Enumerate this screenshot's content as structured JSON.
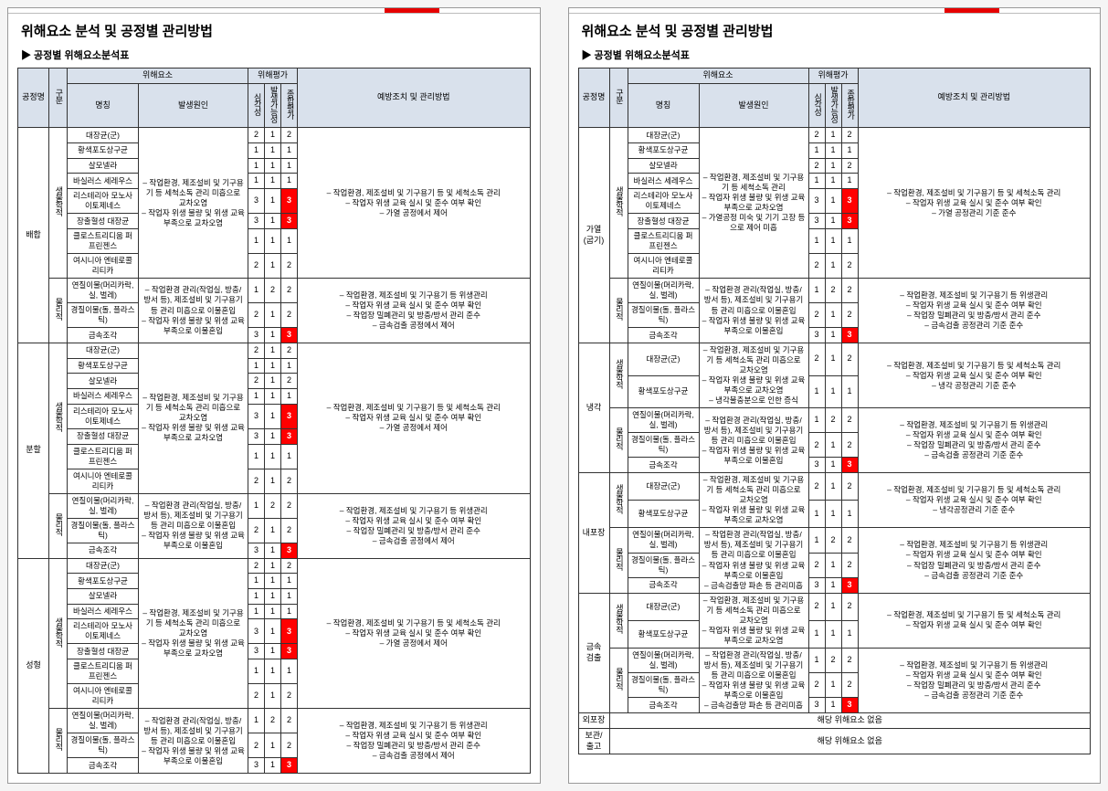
{
  "doc": {
    "title": "위해요소 분석 및 공정별 관리방법",
    "subtitle": "▶  공정별 위해요소분석표"
  },
  "headers": {
    "process": "공정명",
    "category": "구분",
    "hazardGroup": "위해요소",
    "name": "명칭",
    "cause": "발생원인",
    "riskGroup": "위해평가",
    "severity": "심각성",
    "likelihood": "발생가능성",
    "total": "종합평가",
    "measures": "예방조치 및 관리방법"
  },
  "causes": {
    "bio": "– 작업환경, 제조설비 및 기구용기 등 세척소독 관리 미흡으로 교차오염\n– 작업자 위생 불량 및 위생 교육 부족으로 교차오염",
    "bioCook": "– 작업환경, 제조설비 및 기구용기 등 세척소독 관리\n– 작업자 위생 불량 및 위생 교육 부족으로 교차오염\n– 가열공정 미숙 및 기기 고장 등으로 제어 미흡",
    "bioCool": "– 작업환경, 제조설비 및 기구용기 등 세척소독 관리 미흡으로 교차오염\n– 작업자 위생 불량 및 위생 교육 부족으로 교차오염\n– 냉각불충분으로 인한 증식",
    "phys": "– 작업환경 관리(작업실, 방충/방서 등), 제조설비 및 기구용기 등 관리 미흡으로 이물혼입\n– 작업자 위생 불량 및 위생 교육 부족으로 이물혼입",
    "physPack": "– 작업환경 관리(작업실, 방충/방서 등), 제조설비 및 기구용기 등 관리 미흡으로 이물혼입\n– 작업자 위생 불량 및 위생 교육 부족으로 이물혼입\n– 금속검출망 파손 등 관리미흡"
  },
  "measures": {
    "bio": "– 작업환경, 제조설비 및 기구용기 등 및 세척소독 관리\n– 작업자 위생 교육 실시 및 준수 여부 확인\n– 가열 공정에서 제어",
    "bioCook": "– 작업환경, 제조설비 및 기구용기 등 및 세척소독 관리\n– 작업자 위생 교육 실시 및 준수 여부 확인\n– 가열 공정관리 기준 준수",
    "bioCool": "– 작업환경, 제조설비 및 기구용기 등 및 세척소독 관리\n– 작업자 위생 교육 실시 및 준수 여부 확인\n– 냉각 공정관리 기준 준수",
    "bioCoolShort": "– 작업환경, 제조설비 및 기구용기 등 및 세척소독 관리\n– 작업자 위생 교육 실시 및 준수 여부 확인\n– 냉각공정관리 기준 준수",
    "bioChk": "– 작업환경, 제조설비 및 기구용기 등 및 세척소독 관리\n– 작업자 위생 교육 실시 및 준수 여부 확인",
    "phys": "– 작업환경, 제조설비 및 기구용기 등 위생관리\n– 작업자 위생 교육 실시 및 준수 여부 확인\n– 작업장 밀폐관리 및 방충/방서 관리 준수\n– 금속검출 공정에서 제어",
    "physMD": "– 작업환경, 제조설비 및 기구용기 등 위생관리\n– 작업자 위생 교육 실시 및 준수 여부 확인\n– 작업장 밀폐관리 및 방충/방서 관리 준수\n– 금속검출 공정관리 기준 준수"
  },
  "hazards": {
    "bio8": [
      "대장균(군)",
      "황색포도상구균",
      "살모넬라",
      "바실러스 세레우스",
      "리스테리아 모노사이토제네스",
      "장출혈성 대장균",
      "클로스트리디움 퍼프린젠스",
      "여시니아 엔테로콜리티카"
    ],
    "bio2": [
      "대장균(군)",
      "황색포도상구균"
    ],
    "phys3": [
      "연질이물(머리카락, 실, 벌레)",
      "경질이물(돌, 플라스틱)",
      "금속조각"
    ]
  },
  "page1": [
    {
      "proc": "배합",
      "bioScores": [
        [
          2,
          1,
          2
        ],
        [
          1,
          1,
          1
        ],
        [
          1,
          1,
          1
        ],
        [
          1,
          1,
          1
        ],
        [
          3,
          1,
          3
        ],
        [
          3,
          1,
          3
        ],
        [
          1,
          1,
          1
        ],
        [
          2,
          1,
          2
        ]
      ],
      "physScores": [
        [
          1,
          2,
          2
        ],
        [
          2,
          1,
          2
        ],
        [
          3,
          1,
          3
        ]
      ],
      "cause": "bio",
      "meas": "bio",
      "physCause": "phys",
      "physMeas": "phys"
    },
    {
      "proc": "분할",
      "bioScores": [
        [
          2,
          1,
          2
        ],
        [
          1,
          1,
          1
        ],
        [
          2,
          1,
          2
        ],
        [
          1,
          1,
          1
        ],
        [
          3,
          1,
          3
        ],
        [
          3,
          1,
          3
        ],
        [
          1,
          1,
          1
        ],
        [
          2,
          1,
          2
        ]
      ],
      "physScores": [
        [
          1,
          2,
          2
        ],
        [
          2,
          1,
          2
        ],
        [
          3,
          1,
          3
        ]
      ],
      "cause": "bio",
      "meas": "bio",
      "physCause": "phys",
      "physMeas": "phys"
    },
    {
      "proc": "성형",
      "bioScores": [
        [
          2,
          1,
          2
        ],
        [
          1,
          1,
          1
        ],
        [
          1,
          1,
          1
        ],
        [
          1,
          1,
          1
        ],
        [
          3,
          1,
          3
        ],
        [
          3,
          1,
          3
        ],
        [
          1,
          1,
          1
        ],
        [
          2,
          1,
          2
        ]
      ],
      "physScores": [
        [
          1,
          2,
          2
        ],
        [
          2,
          1,
          2
        ],
        [
          3,
          1,
          3
        ]
      ],
      "cause": "bio",
      "meas": "bio",
      "physCause": "phys",
      "physMeas": "phys"
    }
  ],
  "page2": [
    {
      "proc": "가열\n(굽기)",
      "bioScores": [
        [
          2,
          1,
          2
        ],
        [
          1,
          1,
          1
        ],
        [
          2,
          1,
          2
        ],
        [
          1,
          1,
          1
        ],
        [
          3,
          1,
          3
        ],
        [
          3,
          1,
          3
        ],
        [
          1,
          1,
          1
        ],
        [
          2,
          1,
          2
        ]
      ],
      "physScores": [
        [
          1,
          2,
          2
        ],
        [
          2,
          1,
          2
        ],
        [
          3,
          1,
          3
        ]
      ],
      "cause": "bioCook",
      "meas": "bioCook",
      "physCause": "phys",
      "physMeas": "physMD"
    },
    {
      "proc": "냉각",
      "bio2Scores": [
        [
          2,
          1,
          2
        ],
        [
          1,
          1,
          1
        ]
      ],
      "physScores": [
        [
          1,
          2,
          2
        ],
        [
          2,
          1,
          2
        ],
        [
          3,
          1,
          3
        ]
      ],
      "cause": "bioCool",
      "meas": "bioCool",
      "physCause": "phys",
      "physMeas": "physMD"
    },
    {
      "proc": "내포장",
      "bio2Scores": [
        [
          2,
          1,
          2
        ],
        [
          1,
          1,
          1
        ]
      ],
      "physScores": [
        [
          1,
          2,
          2
        ],
        [
          2,
          1,
          2
        ],
        [
          3,
          1,
          3
        ]
      ],
      "cause": "bio",
      "meas": "bioCoolShort",
      "physCause": "physPack",
      "physMeas": "physMD"
    },
    {
      "proc": "금속\n검출",
      "bio2Scores": [
        [
          2,
          1,
          2
        ],
        [
          1,
          1,
          1
        ]
      ],
      "physScores": [
        [
          1,
          2,
          2
        ],
        [
          2,
          1,
          2
        ],
        [
          3,
          1,
          3
        ]
      ],
      "cause": "bio",
      "meas": "bioChk",
      "physCause": "physPack",
      "physMeas": "physMD"
    }
  ],
  "noHazardRows": [
    {
      "proc": "외포장",
      "text": "해당 위해요소 없음"
    },
    {
      "proc": "보관/출고",
      "text": "해당 위해요소 없음"
    }
  ],
  "catLabels": {
    "bio": "생물학적",
    "phys": "물리적"
  },
  "colors": {
    "headerBg": "#d9e1ec",
    "redBg": "#ff0000",
    "redTab": "#e60000",
    "border": "#333333"
  }
}
